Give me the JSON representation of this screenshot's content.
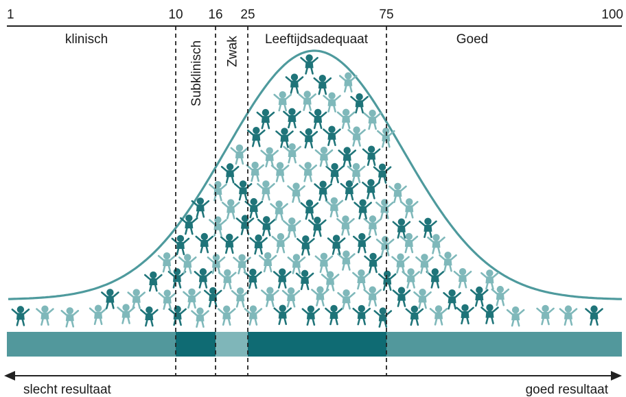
{
  "percentile_scale": {
    "ticks": [
      {
        "value": 1,
        "label": "1"
      },
      {
        "value": 10,
        "label": "10"
      },
      {
        "value": 16,
        "label": "16"
      },
      {
        "value": 25,
        "label": "25"
      },
      {
        "value": 75,
        "label": "75"
      },
      {
        "value": 100,
        "label": "100"
      }
    ]
  },
  "categories": [
    {
      "key": "klinisch",
      "label": "klinisch",
      "from": 1,
      "to": 10,
      "orientation": "horizontal",
      "band_color": "#52989c"
    },
    {
      "key": "subklinisch",
      "label": "Subklinisch",
      "from": 10,
      "to": 16,
      "orientation": "vertical",
      "band_color": "#0f6b73"
    },
    {
      "key": "zwak",
      "label": "Zwak",
      "from": 16,
      "to": 25,
      "orientation": "vertical",
      "band_color": "#7fb6b9"
    },
    {
      "key": "leeftijdsadequaat",
      "label": "Leeftijdsadequaat",
      "from": 25,
      "to": 75,
      "orientation": "horizontal",
      "band_color": "#0f6b73"
    },
    {
      "key": "goed",
      "label": "Goed",
      "from": 75,
      "to": 100,
      "orientation": "horizontal",
      "band_color": "#52989c"
    }
  ],
  "bottom_axis": {
    "left_label": "slecht resultaat",
    "right_label": "goed resultaat"
  },
  "colors": {
    "curve": "#4e9a9d",
    "figure_dark": "#1f7479",
    "figure_light": "#7fb8ba",
    "divider": "#222222",
    "axis": "#222222"
  },
  "icons": {
    "person": "child-figure-icon",
    "left_arrow": "arrow-left-icon",
    "right_arrow": "arrow-right-icon"
  }
}
